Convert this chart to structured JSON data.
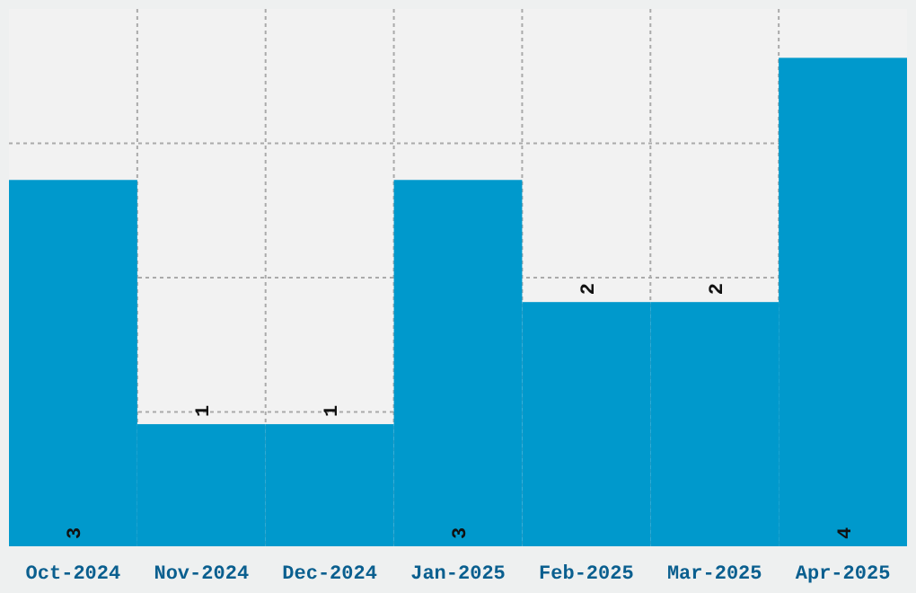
{
  "chart_data": {
    "type": "bar",
    "categories": [
      "Oct-2024",
      "Nov-2024",
      "Dec-2024",
      "Jan-2025",
      "Feb-2025",
      "Mar-2025",
      "Apr-2025"
    ],
    "values": [
      3,
      1,
      1,
      3,
      2,
      2,
      4
    ],
    "color": "#0099cc",
    "ylim": [
      0,
      4.4
    ],
    "yticks": [
      {
        "value": 1.1,
        "label": null
      },
      {
        "value": 2.2,
        "label": null
      },
      {
        "value": 3.3,
        "label": null
      }
    ],
    "grid": true,
    "data_labels": true,
    "tick_labels": "x"
  }
}
